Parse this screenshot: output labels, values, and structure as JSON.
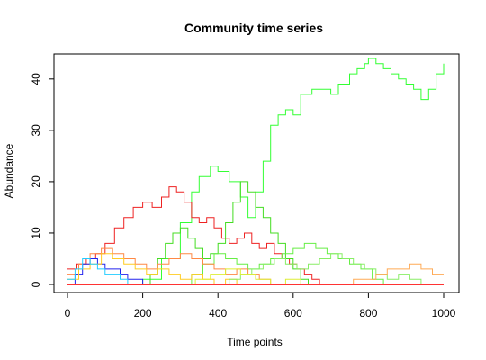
{
  "chart_data": {
    "type": "line",
    "title": "Community time series",
    "xlabel": "Time points",
    "ylabel": "Abundance",
    "xlim": [
      0,
      1000
    ],
    "ylim": [
      0,
      44
    ],
    "xticks": [
      0,
      200,
      400,
      600,
      800,
      1000
    ],
    "yticks": [
      0,
      10,
      20,
      30,
      40
    ],
    "grid": false,
    "legend": "none",
    "series": [
      {
        "color": "#33ff33",
        "x": [
          0,
          50,
          100,
          150,
          200,
          250,
          300,
          330,
          350,
          380,
          400,
          430,
          460,
          480,
          500,
          520,
          540,
          560,
          580,
          600,
          620,
          650,
          680,
          700,
          720,
          750,
          770,
          790,
          800,
          820,
          840,
          860,
          880,
          900,
          920,
          940,
          960,
          980,
          1000
        ],
        "y": [
          0,
          0,
          0,
          0,
          1,
          5,
          12,
          18,
          21,
          23,
          22,
          20,
          17,
          13,
          18,
          24,
          31,
          33,
          34,
          33,
          37,
          38,
          38,
          37,
          39,
          41,
          42,
          43,
          44,
          43,
          42,
          41,
          40,
          39,
          38,
          36,
          38,
          41,
          43
        ]
      },
      {
        "color": "#ee2222",
        "x": [
          0,
          25,
          50,
          75,
          100,
          125,
          150,
          175,
          200,
          225,
          250,
          270,
          290,
          310,
          330,
          350,
          370,
          390,
          410,
          430,
          450,
          470,
          490,
          510,
          530,
          550,
          570,
          590,
          610,
          630,
          650,
          670,
          690
        ],
        "y": [
          3,
          4,
          5,
          6,
          8,
          11,
          13,
          15,
          16,
          15,
          17,
          19,
          18,
          16,
          13,
          12,
          13,
          11,
          9,
          8,
          9,
          10,
          8,
          7,
          8,
          6,
          5,
          4,
          3,
          2,
          1,
          0,
          0
        ]
      },
      {
        "color": "#44dd22",
        "x": [
          200,
          220,
          240,
          260,
          280,
          300,
          320,
          340,
          360,
          380,
          400,
          420,
          440,
          460,
          480,
          500,
          520,
          540,
          560,
          580,
          600,
          620,
          640
        ],
        "y": [
          0,
          2,
          5,
          8,
          10,
          11,
          9,
          7,
          5,
          6,
          8,
          12,
          16,
          20,
          18,
          15,
          13,
          10,
          8,
          5,
          3,
          1,
          0
        ]
      },
      {
        "color": "#66ee44",
        "x": [
          300,
          330,
          360,
          390,
          420,
          450,
          480,
          510,
          540,
          570,
          600,
          630,
          660,
          690,
          720,
          750,
          780,
          810,
          840
        ],
        "y": [
          0,
          2,
          4,
          6,
          5,
          4,
          3,
          4,
          5,
          6,
          7,
          8,
          7,
          6,
          5,
          4,
          3,
          1,
          0
        ]
      },
      {
        "color": "#ff8844",
        "x": [
          0,
          30,
          60,
          90,
          120,
          150,
          180,
          210,
          240,
          270,
          300,
          330,
          360,
          390,
          420,
          450,
          480,
          510,
          540
        ],
        "y": [
          2,
          4,
          6,
          7,
          6,
          5,
          4,
          3,
          4,
          5,
          6,
          5,
          4,
          3,
          2,
          3,
          2,
          1,
          0
        ]
      },
      {
        "color": "#2222ee",
        "x": [
          0,
          20,
          40,
          60,
          80,
          100,
          120,
          140,
          160,
          180,
          200,
          220
        ],
        "y": [
          0,
          2,
          4,
          5,
          4,
          3,
          3,
          2,
          1,
          1,
          0,
          0
        ]
      },
      {
        "color": "#ffcc22",
        "x": [
          0,
          30,
          60,
          90,
          120,
          150,
          180,
          210,
          240,
          270,
          300,
          330,
          360,
          390,
          420,
          450
        ],
        "y": [
          1,
          3,
          4,
          6,
          5,
          4,
          3,
          2,
          3,
          2,
          1,
          2,
          1,
          0,
          1,
          0
        ]
      },
      {
        "color": "#88ee66",
        "x": [
          400,
          430,
          460,
          490,
          520,
          550,
          580,
          610,
          640,
          670,
          700,
          730,
          760,
          790,
          820,
          850,
          880,
          910,
          940
        ],
        "y": [
          0,
          1,
          2,
          3,
          4,
          5,
          4,
          3,
          4,
          5,
          6,
          5,
          4,
          3,
          2,
          1,
          2,
          1,
          0
        ]
      },
      {
        "color": "#22ccff",
        "x": [
          0,
          20,
          40,
          60,
          80,
          100,
          120,
          140,
          160,
          180
        ],
        "y": [
          1,
          3,
          5,
          4,
          3,
          2,
          2,
          1,
          0,
          0
        ]
      },
      {
        "color": "#ffaa55",
        "x": [
          700,
          730,
          760,
          790,
          820,
          850,
          880,
          910,
          940,
          970,
          1000
        ],
        "y": [
          0,
          0,
          1,
          1,
          2,
          3,
          3,
          4,
          3,
          2,
          2
        ]
      },
      {
        "color": "#ddee33",
        "x": [
          300,
          340,
          380,
          420,
          460,
          500,
          540,
          580,
          620,
          660,
          700
        ],
        "y": [
          0,
          1,
          2,
          3,
          2,
          1,
          0,
          1,
          0,
          0,
          0
        ]
      },
      {
        "color": "#ff3333",
        "x": [
          0,
          1000
        ],
        "y": [
          0,
          0
        ]
      }
    ]
  }
}
